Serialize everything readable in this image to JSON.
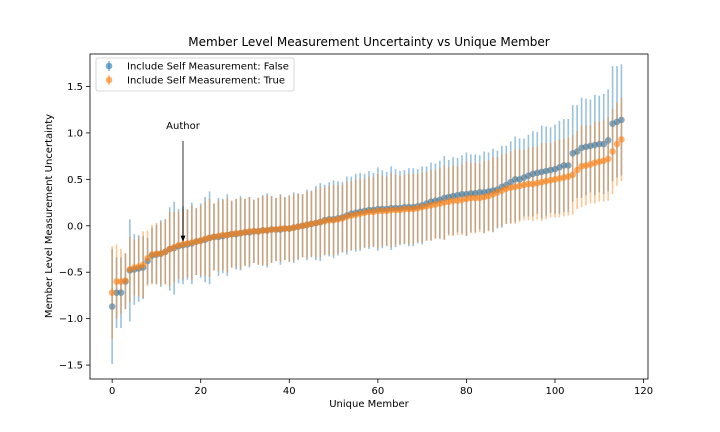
{
  "chart_data": {
    "type": "scatter",
    "title": "Member Level Measurement Uncertainty vs Unique Member",
    "xlabel": "Unique Member",
    "ylabel": "Member Level Measurement Uncertainty",
    "xlim": [
      -5,
      121
    ],
    "ylim": [
      -1.65,
      1.85
    ],
    "xticks": [
      0,
      20,
      40,
      60,
      80,
      100,
      120
    ],
    "yticks": [
      -1.5,
      -1.0,
      -0.5,
      0.0,
      0.5,
      1.0,
      1.5
    ],
    "xtick_labels": [
      "0",
      "20",
      "40",
      "60",
      "80",
      "100",
      "120"
    ],
    "ytick_labels": [
      "−1.5",
      "−1.0",
      "−0.5",
      "0.0",
      "0.5",
      "1.0",
      "1.5"
    ],
    "grid": false,
    "legend_position": "top-left",
    "x": [
      0,
      1,
      2,
      3,
      4,
      5,
      6,
      7,
      8,
      9,
      10,
      11,
      12,
      13,
      14,
      15,
      16,
      17,
      18,
      19,
      20,
      21,
      22,
      23,
      24,
      25,
      26,
      27,
      28,
      29,
      30,
      31,
      32,
      33,
      34,
      35,
      36,
      37,
      38,
      39,
      40,
      41,
      42,
      43,
      44,
      45,
      46,
      47,
      48,
      49,
      50,
      51,
      52,
      53,
      54,
      55,
      56,
      57,
      58,
      59,
      60,
      61,
      62,
      63,
      64,
      65,
      66,
      67,
      68,
      69,
      70,
      71,
      72,
      73,
      74,
      75,
      76,
      77,
      78,
      79,
      80,
      81,
      82,
      83,
      84,
      85,
      86,
      87,
      88,
      89,
      90,
      91,
      92,
      93,
      94,
      95,
      96,
      97,
      98,
      99,
      100,
      101,
      102,
      103,
      104,
      105,
      106,
      107,
      108,
      109,
      110,
      111,
      112,
      113,
      114,
      115
    ],
    "series": [
      {
        "name": "Include Self Measurement: False",
        "color": "#1f77b4",
        "values": [
          -0.87,
          -0.72,
          -0.72,
          -0.6,
          -0.48,
          -0.47,
          -0.46,
          -0.45,
          -0.38,
          -0.32,
          -0.31,
          -0.3,
          -0.28,
          -0.25,
          -0.24,
          -0.22,
          -0.21,
          -0.2,
          -0.19,
          -0.17,
          -0.16,
          -0.15,
          -0.13,
          -0.12,
          -0.12,
          -0.11,
          -0.1,
          -0.09,
          -0.09,
          -0.08,
          -0.07,
          -0.07,
          -0.06,
          -0.06,
          -0.05,
          -0.05,
          -0.04,
          -0.04,
          -0.04,
          -0.03,
          -0.03,
          -0.02,
          -0.01,
          0.0,
          0.01,
          0.02,
          0.03,
          0.04,
          0.06,
          0.07,
          0.07,
          0.08,
          0.09,
          0.11,
          0.13,
          0.14,
          0.15,
          0.16,
          0.17,
          0.17,
          0.18,
          0.18,
          0.18,
          0.19,
          0.19,
          0.19,
          0.2,
          0.2,
          0.2,
          0.21,
          0.22,
          0.24,
          0.26,
          0.27,
          0.28,
          0.3,
          0.31,
          0.32,
          0.33,
          0.34,
          0.34,
          0.35,
          0.35,
          0.36,
          0.36,
          0.37,
          0.38,
          0.39,
          0.42,
          0.44,
          0.47,
          0.5,
          0.5,
          0.52,
          0.54,
          0.56,
          0.57,
          0.58,
          0.59,
          0.6,
          0.61,
          0.63,
          0.65,
          0.65,
          0.78,
          0.8,
          0.84,
          0.85,
          0.86,
          0.87,
          0.88,
          0.88,
          0.92,
          1.1,
          1.12,
          1.14
        ],
        "err": [
          0.62,
          0.38,
          0.38,
          0.3,
          0.55,
          0.38,
          0.36,
          0.34,
          0.25,
          0.3,
          0.32,
          0.36,
          0.35,
          0.45,
          0.5,
          0.4,
          0.42,
          0.38,
          0.44,
          0.36,
          0.4,
          0.46,
          0.5,
          0.36,
          0.42,
          0.4,
          0.44,
          0.36,
          0.38,
          0.4,
          0.36,
          0.38,
          0.34,
          0.36,
          0.38,
          0.4,
          0.36,
          0.34,
          0.38,
          0.34,
          0.36,
          0.38,
          0.36,
          0.34,
          0.38,
          0.36,
          0.4,
          0.42,
          0.38,
          0.4,
          0.42,
          0.4,
          0.38,
          0.42,
          0.4,
          0.42,
          0.42,
          0.4,
          0.42,
          0.4,
          0.45,
          0.42,
          0.4,
          0.45,
          0.42,
          0.4,
          0.4,
          0.42,
          0.42,
          0.4,
          0.42,
          0.4,
          0.42,
          0.4,
          0.42,
          0.45,
          0.4,
          0.42,
          0.4,
          0.42,
          0.45,
          0.42,
          0.42,
          0.4,
          0.44,
          0.42,
          0.45,
          0.42,
          0.44,
          0.42,
          0.44,
          0.46,
          0.44,
          0.42,
          0.44,
          0.46,
          0.44,
          0.5,
          0.48,
          0.46,
          0.48,
          0.5,
          0.5,
          0.5,
          0.52,
          0.5,
          0.54,
          0.52,
          0.5,
          0.54,
          0.52,
          0.54,
          0.55,
          0.62,
          0.6,
          0.6
        ]
      },
      {
        "name": "Include Self Measurement: True",
        "color": "#ff7f0e",
        "values": [
          -0.72,
          -0.6,
          -0.6,
          -0.59,
          -0.47,
          -0.45,
          -0.44,
          -0.42,
          -0.35,
          -0.31,
          -0.3,
          -0.3,
          -0.28,
          -0.25,
          -0.23,
          -0.21,
          -0.2,
          -0.19,
          -0.18,
          -0.17,
          -0.16,
          -0.14,
          -0.13,
          -0.12,
          -0.11,
          -0.1,
          -0.1,
          -0.09,
          -0.08,
          -0.08,
          -0.07,
          -0.06,
          -0.06,
          -0.06,
          -0.05,
          -0.05,
          -0.04,
          -0.04,
          -0.03,
          -0.03,
          -0.03,
          -0.02,
          -0.01,
          0.0,
          0.01,
          0.02,
          0.03,
          0.04,
          0.05,
          0.06,
          0.06,
          0.07,
          0.08,
          0.1,
          0.11,
          0.12,
          0.13,
          0.14,
          0.15,
          0.15,
          0.16,
          0.16,
          0.16,
          0.17,
          0.17,
          0.17,
          0.18,
          0.18,
          0.18,
          0.19,
          0.2,
          0.21,
          0.22,
          0.23,
          0.24,
          0.25,
          0.26,
          0.27,
          0.27,
          0.28,
          0.29,
          0.3,
          0.3,
          0.3,
          0.31,
          0.32,
          0.34,
          0.36,
          0.38,
          0.4,
          0.41,
          0.42,
          0.43,
          0.44,
          0.45,
          0.45,
          0.46,
          0.47,
          0.48,
          0.49,
          0.5,
          0.51,
          0.52,
          0.53,
          0.55,
          0.6,
          0.64,
          0.65,
          0.66,
          0.68,
          0.69,
          0.7,
          0.72,
          0.8,
          0.88,
          0.93
        ],
        "err": [
          0.5,
          0.4,
          0.35,
          0.3,
          0.35,
          0.3,
          0.32,
          0.36,
          0.3,
          0.32,
          0.33,
          0.34,
          0.35,
          0.4,
          0.38,
          0.36,
          0.38,
          0.36,
          0.4,
          0.36,
          0.38,
          0.4,
          0.42,
          0.36,
          0.38,
          0.38,
          0.4,
          0.36,
          0.37,
          0.38,
          0.36,
          0.37,
          0.34,
          0.36,
          0.37,
          0.38,
          0.36,
          0.34,
          0.36,
          0.34,
          0.35,
          0.36,
          0.35,
          0.34,
          0.36,
          0.35,
          0.37,
          0.38,
          0.36,
          0.37,
          0.38,
          0.37,
          0.36,
          0.38,
          0.37,
          0.38,
          0.38,
          0.37,
          0.38,
          0.37,
          0.4,
          0.38,
          0.37,
          0.4,
          0.38,
          0.37,
          0.37,
          0.38,
          0.38,
          0.37,
          0.38,
          0.37,
          0.38,
          0.37,
          0.38,
          0.4,
          0.37,
          0.38,
          0.37,
          0.38,
          0.4,
          0.38,
          0.38,
          0.37,
          0.39,
          0.38,
          0.4,
          0.38,
          0.39,
          0.38,
          0.39,
          0.4,
          0.39,
          0.38,
          0.39,
          0.4,
          0.39,
          0.42,
          0.41,
          0.4,
          0.41,
          0.42,
          0.42,
          0.42,
          0.43,
          0.42,
          0.44,
          0.43,
          0.42,
          0.44,
          0.43,
          0.44,
          0.45,
          0.46,
          0.45,
          0.45
        ]
      }
    ],
    "annotations": [
      {
        "text": "Author",
        "x": 16,
        "y": -0.17,
        "text_x": 16,
        "text_y": 1.0
      }
    ]
  }
}
